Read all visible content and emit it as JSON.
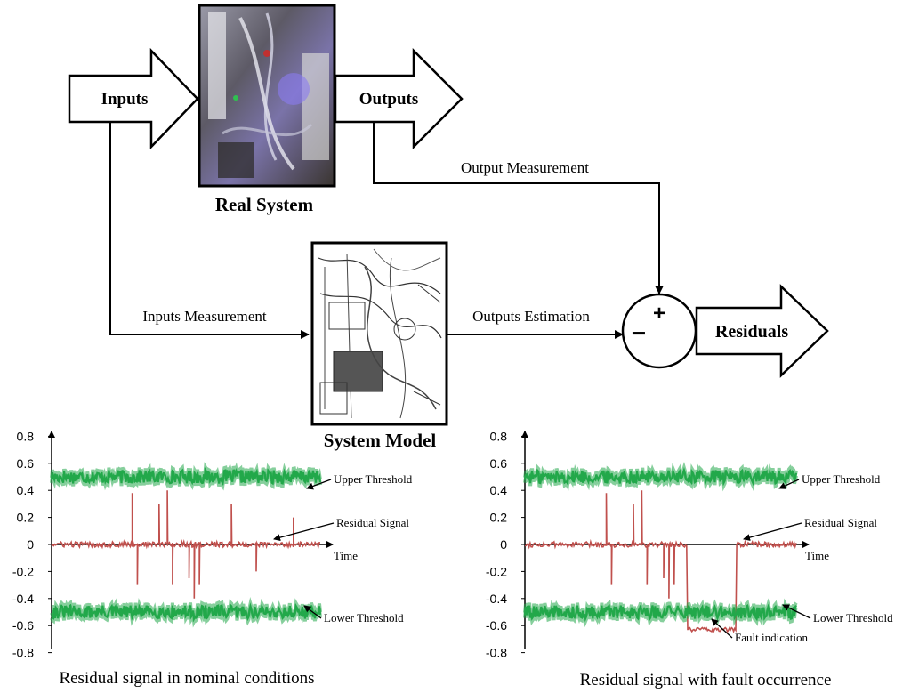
{
  "diagram": {
    "inputs_label": "Inputs",
    "outputs_label": "Outputs",
    "real_system_label": "Real System",
    "system_model_label": "System Model",
    "output_measurement_label": "Output Measurement",
    "inputs_measurement_label": "Inputs Measurement",
    "outputs_estimation_label": "Outputs Estimation",
    "residuals_label": "Residuals",
    "plus_sign": "+",
    "minus_sign": "−"
  },
  "chart_data": [
    {
      "type": "line",
      "caption": "Residual signal in nominal conditions",
      "xlabel": "Time",
      "ytick_labels": [
        "0.8",
        "0.6",
        "0.4",
        "0.2",
        "0",
        "-0.2",
        "-0.4",
        "-0.6",
        "-0.8"
      ],
      "ylim": [
        -0.9,
        0.9
      ],
      "series": [
        {
          "name": "Upper Threshold",
          "level": 0.5,
          "noise": 0.05,
          "color": "#22a84a"
        },
        {
          "name": "Residual Signal",
          "level": 0.0,
          "noise": 0.02,
          "color": "#c0504d",
          "spikes": [
            [
              0.3,
              0.38
            ],
            [
              0.32,
              -0.3
            ],
            [
              0.4,
              0.3
            ],
            [
              0.43,
              0.4
            ],
            [
              0.45,
              -0.3
            ],
            [
              0.51,
              -0.25
            ],
            [
              0.53,
              -0.4
            ],
            [
              0.55,
              -0.3
            ],
            [
              0.67,
              0.3
            ],
            [
              0.76,
              -0.2
            ],
            [
              0.9,
              0.2
            ]
          ]
        },
        {
          "name": "Lower Threshold",
          "level": -0.5,
          "noise": 0.05,
          "color": "#22a84a"
        }
      ],
      "annotations": [
        "Upper Threshold",
        "Residual Signal",
        "Lower Threshold"
      ]
    },
    {
      "type": "line",
      "caption": "Residual signal with fault occurrence",
      "xlabel": "Time",
      "ytick_labels": [
        "0.8",
        "0.6",
        "0.4",
        "0.2",
        "0",
        "-0.2",
        "-0.4",
        "-0.6",
        "-0.8"
      ],
      "ylim": [
        -0.9,
        0.9
      ],
      "series": [
        {
          "name": "Upper Threshold",
          "level": 0.5,
          "noise": 0.05,
          "color": "#22a84a"
        },
        {
          "name": "Residual Signal",
          "level": 0.0,
          "noise": 0.02,
          "color": "#c0504d",
          "spikes": [
            [
              0.3,
              0.38
            ],
            [
              0.32,
              -0.3
            ],
            [
              0.4,
              0.3
            ],
            [
              0.43,
              0.4
            ],
            [
              0.45,
              -0.3
            ],
            [
              0.51,
              -0.25
            ],
            [
              0.53,
              -0.4
            ],
            [
              0.55,
              -0.3
            ]
          ],
          "fault": {
            "x_start": 0.6,
            "x_end": 0.78,
            "level": -0.63
          }
        },
        {
          "name": "Lower Threshold",
          "level": -0.5,
          "noise": 0.05,
          "color": "#22a84a"
        }
      ],
      "annotations": [
        "Upper Threshold",
        "Residual Signal",
        "Lower Threshold",
        "Fault indication"
      ]
    }
  ]
}
